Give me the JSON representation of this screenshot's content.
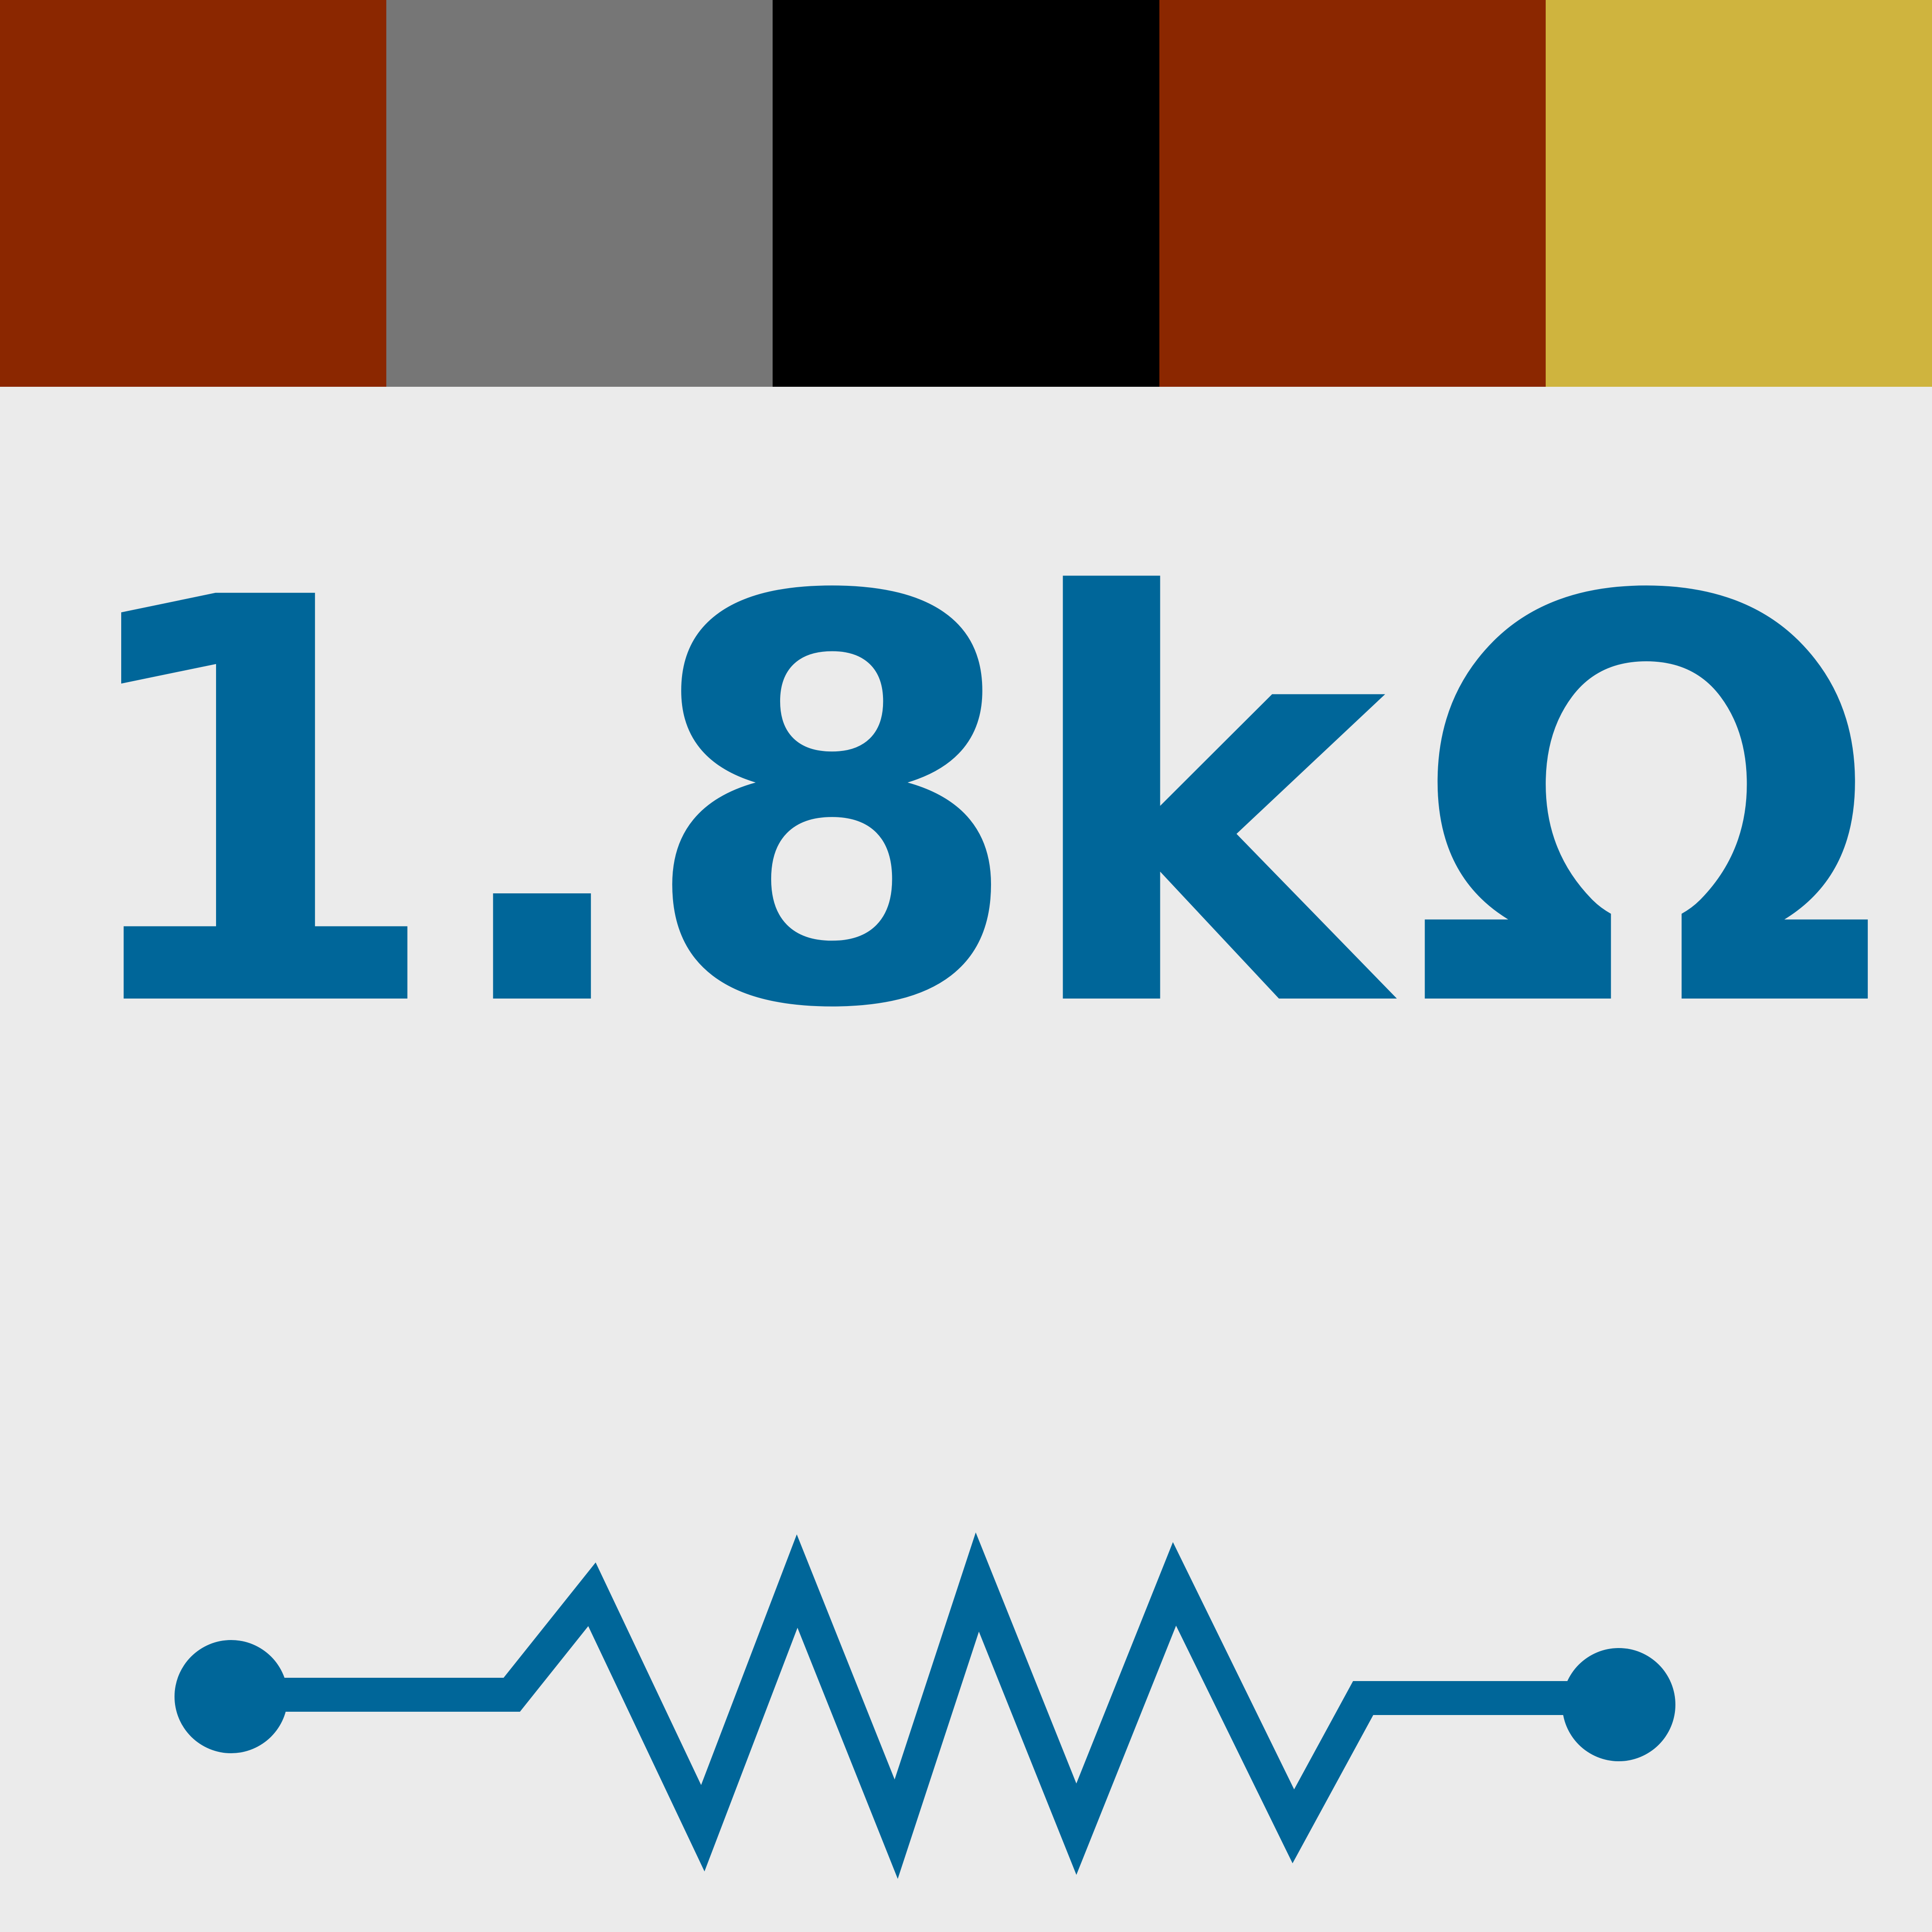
{
  "color_bands": [
    {
      "name": "brown",
      "color": "#8b2700"
    },
    {
      "name": "gray",
      "color": "#767676"
    },
    {
      "name": "black",
      "color": "#000000"
    },
    {
      "name": "brown",
      "color": "#8b2700"
    },
    {
      "name": "gold",
      "color": "#cfb43e"
    }
  ],
  "resistance": {
    "number": "1.8k",
    "unit": "Ω"
  },
  "colors": {
    "background": "#ebebeb",
    "accent": "#006699"
  },
  "symbol": {
    "icon": "resistor-symbol-icon"
  }
}
